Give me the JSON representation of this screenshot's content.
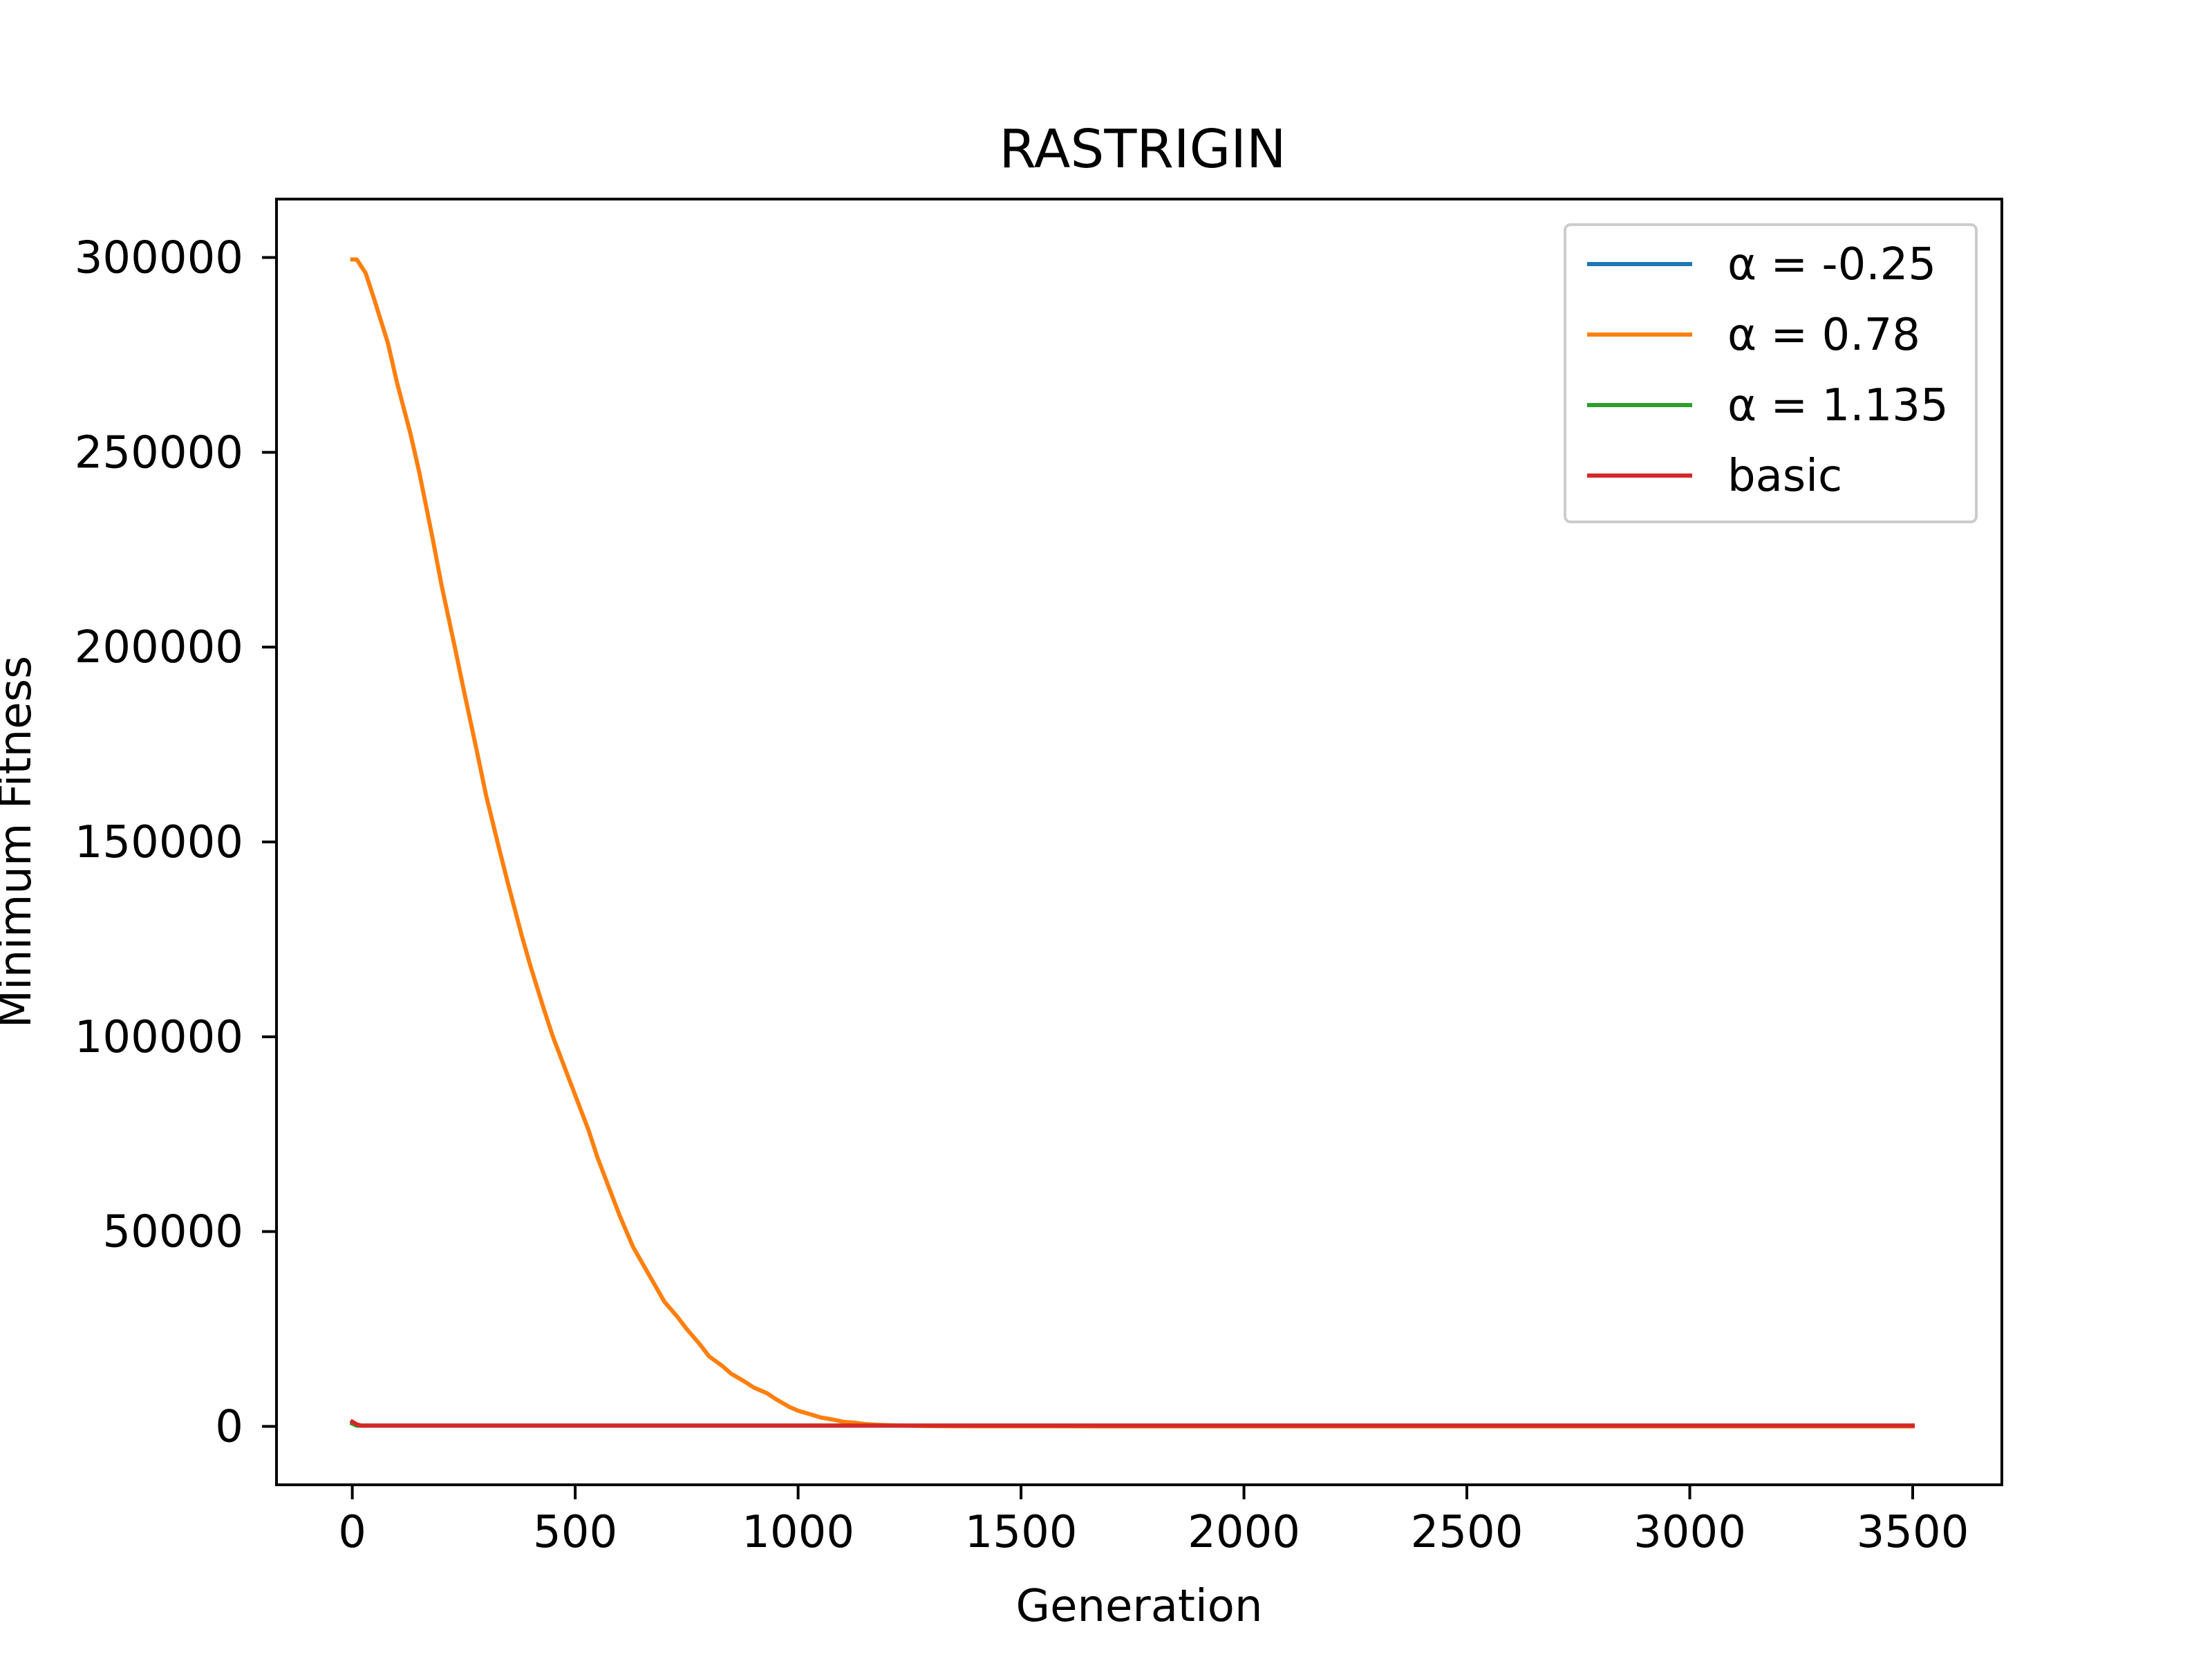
{
  "chart_data": {
    "type": "line",
    "title": "RASTRIGIN",
    "xlabel": "Generation",
    "ylabel": "Minimum Fitness",
    "xlim": [
      -170,
      3700
    ],
    "ylim": [
      -15000,
      315000
    ],
    "xticks": [
      0,
      500,
      1000,
      1500,
      2000,
      2500,
      3000,
      3500
    ],
    "yticks": [
      0,
      50000,
      100000,
      150000,
      200000,
      250000,
      300000
    ],
    "xtick_labels": [
      "0",
      "500",
      "1000",
      "1500",
      "2000",
      "2500",
      "3000",
      "3500"
    ],
    "ytick_labels": [
      "0",
      "50000",
      "100000",
      "150000",
      "200000",
      "250000",
      "300000"
    ],
    "grid": false,
    "legend_position": "top-right",
    "series": [
      {
        "name": "α = -0.25",
        "color": "#1f77b4",
        "x": [
          0,
          10,
          3500
        ],
        "y": [
          800,
          200,
          200
        ]
      },
      {
        "name": "α = 0.78",
        "color": "#ff7f0e",
        "x": [
          0,
          10,
          30,
          50,
          80,
          100,
          130,
          150,
          180,
          200,
          230,
          250,
          280,
          300,
          330,
          350,
          380,
          400,
          430,
          450,
          480,
          500,
          530,
          550,
          580,
          600,
          630,
          650,
          680,
          700,
          730,
          750,
          780,
          800,
          830,
          850,
          880,
          900,
          930,
          950,
          980,
          1000,
          1030,
          1050,
          1080,
          1100,
          1130,
          1150,
          1180,
          1200,
          1250,
          1300,
          1350,
          1400,
          1500,
          1700,
          2000,
          2500,
          3000,
          3500
        ],
        "y": [
          299500,
          299500,
          296000,
          289000,
          278000,
          268000,
          255000,
          245000,
          228000,
          216000,
          200000,
          189000,
          173000,
          162000,
          148000,
          139000,
          126000,
          118000,
          107000,
          100000,
          91000,
          85000,
          76000,
          69000,
          60000,
          54000,
          46000,
          42000,
          36000,
          32000,
          28000,
          25000,
          21000,
          18000,
          15500,
          13500,
          11500,
          10000,
          8500,
          7000,
          5000,
          4000,
          3000,
          2300,
          1700,
          1200,
          900,
          600,
          400,
          300,
          150,
          80,
          40,
          20,
          10,
          0,
          0,
          0,
          0,
          0
        ]
      },
      {
        "name": "α = 1.135",
        "color": "#2ca02c",
        "x": [
          0,
          10,
          3500
        ],
        "y": [
          700,
          200,
          200
        ]
      },
      {
        "name": "basic",
        "color": "#d62728",
        "x": [
          0,
          10,
          20,
          3500
        ],
        "y": [
          1200,
          500,
          200,
          200
        ]
      }
    ]
  }
}
